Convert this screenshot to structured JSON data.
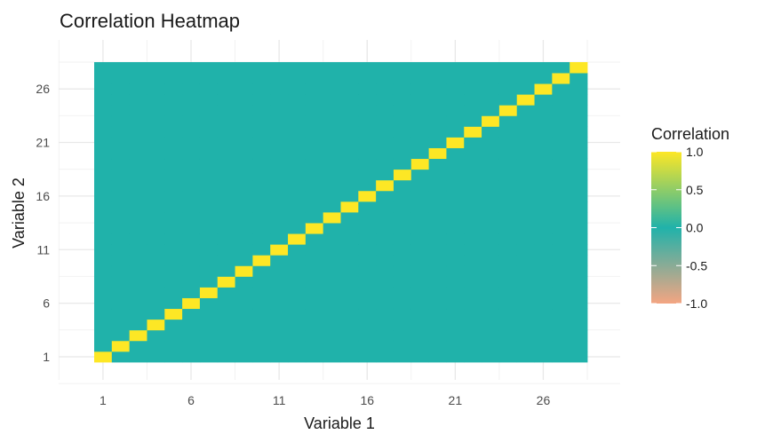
{
  "chart_data": {
    "type": "heatmap",
    "title": "Correlation Heatmap",
    "xlabel": "Variable 1",
    "ylabel": "Variable 2",
    "n_variables": 28,
    "x_ticks": [
      "1",
      "6",
      "11",
      "16",
      "21",
      "26"
    ],
    "y_ticks": [
      "1",
      "6",
      "11",
      "16",
      "21",
      "26"
    ],
    "diagonal_value": 1.0,
    "off_diagonal_value": 0.0,
    "color_scale": {
      "low": "#f4a582",
      "mid": "#20b2aa",
      "high": "#fde725",
      "domain": [
        -1.0,
        0.0,
        1.0
      ]
    },
    "legend": {
      "title": "Correlation",
      "labels": [
        "1.0",
        "0.5",
        "0.0",
        "-0.5",
        "-1.0"
      ],
      "values": [
        1.0,
        0.5,
        0.0,
        -0.5,
        -1.0
      ],
      "position": "right"
    },
    "grid": true
  }
}
